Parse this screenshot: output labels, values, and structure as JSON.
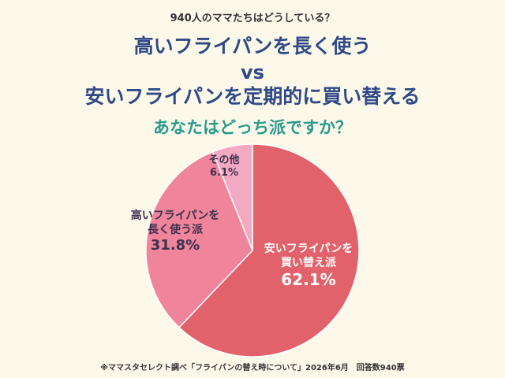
{
  "header": {
    "subtitle": "940人のママたちはどうしている？",
    "title_line1": "高いフライパンを長く使う",
    "title_vs": "vs",
    "title_line2": "安いフライパンを定期的に買い替える",
    "question": "あなたはどっち派ですか？"
  },
  "chart_data": {
    "type": "pie",
    "title": "",
    "slices": [
      {
        "label_line1": "安いフライパンを",
        "label_line2": "買い替え派",
        "value": 62.1,
        "value_label": "62.1%",
        "color": "#e2626b"
      },
      {
        "label_line1": "高いフライパンを",
        "label_line2": "長く使う派",
        "value": 31.8,
        "value_label": "31.8%",
        "color": "#f0849a"
      },
      {
        "label_line1": "その他",
        "label_line2": "",
        "value": 6.1,
        "value_label": "6.1%",
        "color": "#f4a9c2"
      }
    ]
  },
  "footer": {
    "source": "※ママスタセレクト調べ「フライパンの替え時について」2026年6月　回答数940票"
  }
}
